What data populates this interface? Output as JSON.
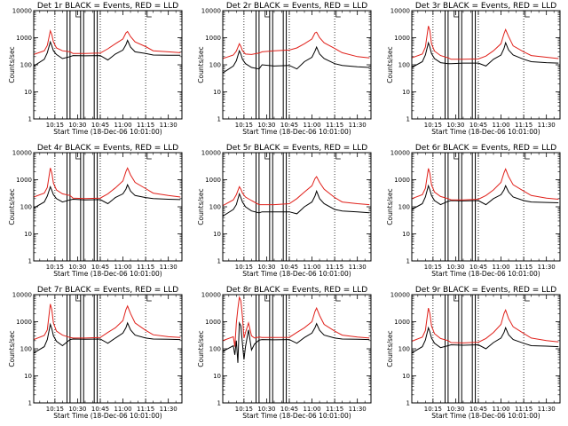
{
  "chart_data": {
    "type": "line",
    "layout_grid": "3x3",
    "colors": {
      "events": "#000000",
      "lld": "#e0201a"
    },
    "x_tick_labels": [
      "10:15",
      "10:30",
      "10:45",
      "11:00",
      "11:15",
      "11:30"
    ],
    "x_ticks_hhmm": [
      "10:15",
      "10:30",
      "10:45",
      "11:00",
      "11:15",
      "11:30"
    ],
    "xlim_hhmm": [
      "10:01",
      "11:39"
    ],
    "xlabel": "Start Time (18-Dec-06 10:01:00)",
    "ylabel": "Counts/sec",
    "y_scale": "log",
    "ylim": [
      1,
      10000
    ],
    "y_tick_labels": [
      "1",
      "10",
      "100",
      "1000",
      "10000"
    ],
    "panels": [
      {
        "title": "Det 1r BLACK = Events, RED = LLD",
        "x": [
          "10:01",
          "10:08",
          "10:10",
          "10:12",
          "10:13",
          "10:14",
          "10:16",
          "10:20",
          "10:25",
          "10:27",
          "10:35",
          "10:45",
          "10:50",
          "10:55",
          "11:00",
          "11:02",
          "11:03",
          "11:05",
          "11:08",
          "11:15",
          "11:20",
          "11:30",
          "11:38"
        ],
        "events": [
          90,
          160,
          280,
          700,
          500,
          330,
          240,
          170,
          200,
          220,
          215,
          220,
          150,
          250,
          350,
          550,
          800,
          450,
          300,
          260,
          230,
          225,
          225
        ],
        "lld": [
          240,
          330,
          520,
          1800,
          1300,
          700,
          420,
          330,
          300,
          260,
          260,
          270,
          390,
          600,
          900,
          1500,
          1700,
          1100,
          700,
          470,
          330,
          300,
          280
        ],
        "vertical_lines": [
          "10:23",
          "10:25",
          "10:32",
          "10:34",
          "10:41",
          "10:43"
        ],
        "dotted_lines": [
          "10:15",
          "10:45",
          "11:15"
        ],
        "marker_bars": [
          "10:29",
          "11:16"
        ]
      },
      {
        "title": "Det 2r BLACK = Events, RED = LLD",
        "x": [
          "10:01",
          "10:08",
          "10:10",
          "10:12",
          "10:13",
          "10:14",
          "10:16",
          "10:20",
          "10:25",
          "10:27",
          "10:35",
          "10:45",
          "10:50",
          "10:55",
          "11:00",
          "11:02",
          "11:03",
          "11:05",
          "11:08",
          "11:15",
          "11:20",
          "11:30",
          "11:38"
        ],
        "events": [
          50,
          90,
          140,
          330,
          250,
          160,
          110,
          80,
          70,
          100,
          90,
          95,
          70,
          130,
          190,
          320,
          450,
          250,
          170,
          110,
          95,
          85,
          80
        ],
        "lld": [
          170,
          230,
          320,
          600,
          480,
          330,
          250,
          240,
          270,
          300,
          330,
          350,
          420,
          600,
          900,
          1500,
          1600,
          1000,
          650,
          400,
          280,
          200,
          180
        ],
        "vertical_lines": [
          "10:23",
          "10:25",
          "10:32",
          "10:34",
          "10:41",
          "10:43"
        ],
        "dotted_lines": [
          "10:15",
          "10:45",
          "11:15"
        ],
        "marker_bars": [
          "10:29",
          "11:16"
        ]
      },
      {
        "title": "Det 3r BLACK = Events, RED = LLD",
        "x": [
          "10:01",
          "10:08",
          "10:10",
          "10:12",
          "10:13",
          "10:14",
          "10:16",
          "10:20",
          "10:25",
          "10:27",
          "10:35",
          "10:45",
          "10:50",
          "10:55",
          "11:00",
          "11:02",
          "11:03",
          "11:05",
          "11:08",
          "11:15",
          "11:20",
          "11:30",
          "11:38"
        ],
        "events": [
          80,
          130,
          230,
          650,
          450,
          260,
          170,
          120,
          110,
          110,
          115,
          115,
          90,
          160,
          230,
          400,
          650,
          350,
          230,
          160,
          130,
          120,
          115
        ],
        "lld": [
          180,
          250,
          450,
          2700,
          1800,
          600,
          320,
          220,
          180,
          160,
          160,
          165,
          210,
          330,
          600,
          1400,
          2000,
          1100,
          500,
          300,
          220,
          190,
          170
        ],
        "vertical_lines": [
          "10:23",
          "10:25",
          "10:32",
          "10:34",
          "10:41",
          "10:43"
        ],
        "dotted_lines": [
          "10:15",
          "10:45",
          "11:15"
        ],
        "marker_bars": [
          "10:29",
          "11:16"
        ]
      },
      {
        "title": "Det 4r BLACK = Events, RED = LLD",
        "x": [
          "10:01",
          "10:08",
          "10:10",
          "10:12",
          "10:13",
          "10:14",
          "10:16",
          "10:20",
          "10:25",
          "10:27",
          "10:35",
          "10:45",
          "10:50",
          "10:55",
          "11:00",
          "11:02",
          "11:03",
          "11:05",
          "11:08",
          "11:15",
          "11:20",
          "11:30",
          "11:38"
        ],
        "events": [
          90,
          150,
          250,
          550,
          400,
          280,
          200,
          150,
          180,
          190,
          180,
          185,
          130,
          220,
          300,
          450,
          650,
          380,
          260,
          220,
          200,
          190,
          185
        ],
        "lld": [
          230,
          320,
          520,
          2700,
          1800,
          750,
          420,
          300,
          260,
          210,
          200,
          210,
          300,
          500,
          900,
          2000,
          2700,
          1500,
          800,
          470,
          320,
          260,
          230
        ],
        "vertical_lines": [
          "10:23",
          "10:25",
          "10:32",
          "10:34",
          "10:41",
          "10:43"
        ],
        "dotted_lines": [
          "10:15",
          "10:45",
          "11:15"
        ],
        "marker_bars": [
          "10:29",
          "11:16"
        ]
      },
      {
        "title": "Det 5r BLACK = Events, RED = LLD",
        "x": [
          "10:01",
          "10:08",
          "10:10",
          "10:12",
          "10:13",
          "10:14",
          "10:16",
          "10:20",
          "10:25",
          "10:27",
          "10:35",
          "10:45",
          "10:50",
          "10:55",
          "11:00",
          "11:02",
          "11:03",
          "11:05",
          "11:08",
          "11:15",
          "11:20",
          "11:30",
          "11:38"
        ],
        "events": [
          45,
          80,
          120,
          300,
          220,
          150,
          100,
          70,
          60,
          65,
          65,
          65,
          55,
          100,
          150,
          250,
          380,
          200,
          130,
          80,
          70,
          65,
          60
        ],
        "lld": [
          110,
          180,
          280,
          550,
          450,
          320,
          230,
          170,
          120,
          120,
          120,
          130,
          200,
          350,
          600,
          1100,
          1300,
          800,
          450,
          220,
          150,
          130,
          120
        ],
        "vertical_lines": [
          "10:23",
          "10:25",
          "10:32",
          "10:34",
          "10:41",
          "10:43"
        ],
        "dotted_lines": [
          "10:15",
          "10:45",
          "11:15"
        ],
        "marker_bars": [
          "10:29",
          "11:16"
        ]
      },
      {
        "title": "Det 6r BLACK = Events, RED = LLD",
        "x": [
          "10:01",
          "10:08",
          "10:10",
          "10:12",
          "10:13",
          "10:14",
          "10:16",
          "10:20",
          "10:25",
          "10:27",
          "10:35",
          "10:45",
          "10:50",
          "10:55",
          "11:00",
          "11:02",
          "11:03",
          "11:05",
          "11:08",
          "11:15",
          "11:20",
          "11:30",
          "11:38"
        ],
        "events": [
          80,
          130,
          230,
          600,
          420,
          260,
          170,
          120,
          160,
          170,
          165,
          170,
          120,
          200,
          280,
          420,
          600,
          350,
          230,
          170,
          150,
          145,
          140
        ],
        "lld": [
          200,
          280,
          480,
          2600,
          1700,
          650,
          350,
          240,
          200,
          180,
          180,
          190,
          260,
          420,
          800,
          1800,
          2500,
          1300,
          650,
          380,
          260,
          210,
          190
        ],
        "vertical_lines": [
          "10:23",
          "10:25",
          "10:32",
          "10:34",
          "10:41",
          "10:43"
        ],
        "dotted_lines": [
          "10:15",
          "10:45",
          "11:15"
        ],
        "marker_bars": [
          "10:29",
          "11:16"
        ]
      },
      {
        "title": "Det 7r BLACK = Events, RED = LLD",
        "x": [
          "10:01",
          "10:08",
          "10:10",
          "10:12",
          "10:13",
          "10:14",
          "10:16",
          "10:20",
          "10:25",
          "10:27",
          "10:35",
          "10:45",
          "10:50",
          "10:55",
          "11:00",
          "11:02",
          "11:03",
          "11:05",
          "11:08",
          "11:15",
          "11:20",
          "11:30",
          "11:38"
        ],
        "events": [
          70,
          120,
          220,
          800,
          550,
          300,
          190,
          130,
          220,
          230,
          225,
          230,
          160,
          250,
          380,
          600,
          900,
          500,
          320,
          250,
          230,
          225,
          220
        ],
        "lld": [
          220,
          310,
          500,
          4500,
          2800,
          900,
          450,
          320,
          260,
          250,
          250,
          260,
          400,
          600,
          1100,
          2800,
          3800,
          2000,
          900,
          480,
          330,
          280,
          260
        ],
        "vertical_lines": [
          "10:23",
          "10:25",
          "10:32",
          "10:34",
          "10:41",
          "10:43"
        ],
        "dotted_lines": [
          "10:15",
          "10:45",
          "11:15"
        ],
        "marker_bars": [
          "10:29",
          "11:16"
        ]
      },
      {
        "title": "Det 8r BLACK = Events, RED = LLD",
        "x": [
          "10:01",
          "10:08",
          "10:09",
          "10:10",
          "10:11",
          "10:12",
          "10:13",
          "10:14",
          "10:15",
          "10:16",
          "10:18",
          "10:20",
          "10:22",
          "10:25",
          "10:27",
          "10:35",
          "10:45",
          "10:50",
          "10:55",
          "11:00",
          "11:02",
          "11:03",
          "11:05",
          "11:08",
          "11:15",
          "11:20",
          "11:30",
          "11:38"
        ],
        "events": [
          80,
          130,
          60,
          200,
          30,
          900,
          700,
          150,
          40,
          120,
          500,
          90,
          150,
          210,
          220,
          215,
          220,
          160,
          260,
          380,
          600,
          850,
          480,
          320,
          250,
          230,
          225,
          220
        ],
        "lld": [
          200,
          280,
          120,
          900,
          3000,
          8000,
          6000,
          1500,
          250,
          400,
          900,
          300,
          250,
          270,
          260,
          260,
          265,
          400,
          600,
          1000,
          2400,
          3200,
          1700,
          800,
          450,
          320,
          270,
          250
        ],
        "vertical_lines": [
          "10:23",
          "10:25",
          "10:32",
          "10:34",
          "10:41",
          "10:43"
        ],
        "dotted_lines": [
          "10:15",
          "10:45",
          "11:15"
        ],
        "marker_bars": [
          "10:29",
          "11:16"
        ]
      },
      {
        "title": "Det 9r BLACK = Events, RED = LLD",
        "x": [
          "10:01",
          "10:08",
          "10:10",
          "10:12",
          "10:13",
          "10:14",
          "10:16",
          "10:20",
          "10:25",
          "10:27",
          "10:35",
          "10:45",
          "10:50",
          "10:55",
          "11:00",
          "11:02",
          "11:03",
          "11:05",
          "11:08",
          "11:15",
          "11:20",
          "11:30",
          "11:38"
        ],
        "events": [
          70,
          120,
          210,
          600,
          420,
          250,
          160,
          110,
          130,
          140,
          135,
          140,
          100,
          170,
          250,
          400,
          600,
          330,
          220,
          160,
          130,
          125,
          120
        ],
        "lld": [
          190,
          270,
          470,
          3200,
          2000,
          700,
          360,
          240,
          200,
          170,
          165,
          175,
          240,
          400,
          800,
          2000,
          2700,
          1300,
          650,
          370,
          250,
          200,
          180
        ],
        "vertical_lines": [
          "10:23",
          "10:25",
          "10:32",
          "10:34",
          "10:41",
          "10:43"
        ],
        "dotted_lines": [
          "10:15",
          "10:45",
          "11:15"
        ],
        "marker_bars": [
          "10:29",
          "11:16"
        ]
      }
    ]
  }
}
